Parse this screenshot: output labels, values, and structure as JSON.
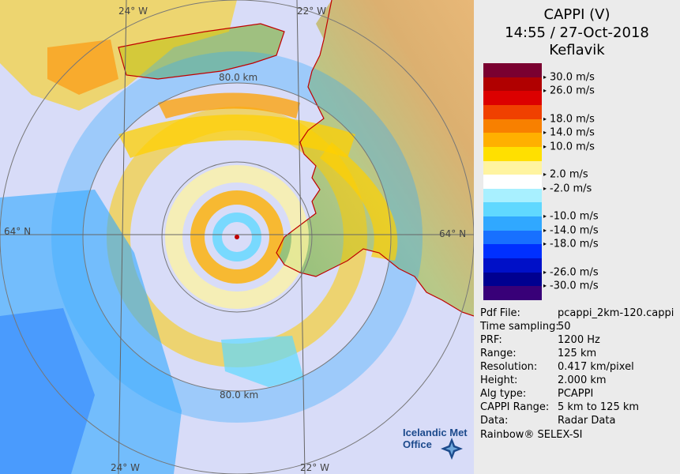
{
  "title": {
    "product": "CAPPI (V)",
    "datetime": "14:55 / 27-Oct-2018",
    "station": "Keflavik"
  },
  "map": {
    "coordinate_labels": {
      "lon_top_left": "24° W",
      "lon_top_center": "22° W",
      "lon_bottom_left": "24° W",
      "lon_bottom_center": "22° W",
      "lat_left": "64° N",
      "lat_right": "64° N"
    },
    "range_rings": {
      "label_top": "80.0 km",
      "label_bottom": "80.0 km"
    },
    "logo": {
      "line1": "Icelandic Met",
      "line2": "Office"
    }
  },
  "legend": {
    "unit": "m/s",
    "levels": [
      {
        "label": "30.0 m/s",
        "color": "#7a0030"
      },
      {
        "label": "26.0 m/s",
        "color": "#b00000"
      },
      {
        "label": "",
        "color": "#dc0000"
      },
      {
        "label": "18.0 m/s",
        "color": "#f04000"
      },
      {
        "label": "14.0 m/s",
        "color": "#f88000"
      },
      {
        "label": "10.0 m/s",
        "color": "#ffb000"
      },
      {
        "label": "",
        "color": "#ffe000"
      },
      {
        "label": "2.0 m/s",
        "color": "#fff4a0"
      },
      {
        "label": "-2.0 m/s",
        "color": "#ffffff"
      },
      {
        "label": "",
        "color": "#a8f0ff"
      },
      {
        "label": "-10.0 m/s",
        "color": "#60d8ff"
      },
      {
        "label": "-14.0 m/s",
        "color": "#30a8ff"
      },
      {
        "label": "-18.0 m/s",
        "color": "#1870ff"
      },
      {
        "label": "",
        "color": "#0030ff"
      },
      {
        "label": "-26.0 m/s",
        "color": "#0010c8"
      },
      {
        "label": "-30.0 m/s",
        "color": "#000090"
      },
      {
        "label": "",
        "color": "#380078"
      }
    ]
  },
  "info": [
    {
      "key": "Pdf File:",
      "value": "pcappi_2km-120.cappi"
    },
    {
      "key": "Time sampling:",
      "value": "50"
    },
    {
      "key": "PRF:",
      "value": "1200 Hz"
    },
    {
      "key": "Range:",
      "value": "125 km"
    },
    {
      "key": "Resolution:",
      "value": "0.417 km/pixel"
    },
    {
      "key": "Height:",
      "value": "2.000 km"
    },
    {
      "key": "Alg type:",
      "value": "PCAPPI"
    },
    {
      "key": "CAPPI Range:",
      "value": "5 km to 125 km"
    },
    {
      "key": "Data:",
      "value": "Radar Data"
    }
  ],
  "footer": "Rainbow® SELEX-SI",
  "colors": {
    "sea": "#d8dcf8",
    "land_low": "#7fb070",
    "land_high": "#d8a060",
    "coastline": "#c00000",
    "ring": "#777777",
    "panel_bg": "#ebebeb"
  }
}
